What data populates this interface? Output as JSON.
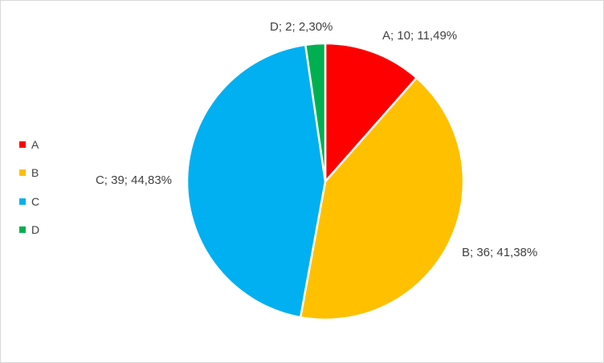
{
  "chart_data": {
    "type": "pie",
    "title": "",
    "categories": [
      "A",
      "B",
      "C",
      "D"
    ],
    "values": [
      10,
      36,
      39,
      2
    ],
    "percentages": [
      "11,49%",
      "41,38%",
      "44,83%",
      "2,30%"
    ],
    "data_labels": [
      "A; 10; 11,49%",
      "B; 36; 41,38%",
      "C; 39; 44,83%",
      "D; 2; 2,30%"
    ],
    "colors": [
      "#FF0000",
      "#FFC000",
      "#00B0F0",
      "#00B050"
    ],
    "legend": {
      "position": "left",
      "entries": [
        "A",
        "B",
        "C",
        "D"
      ]
    }
  }
}
